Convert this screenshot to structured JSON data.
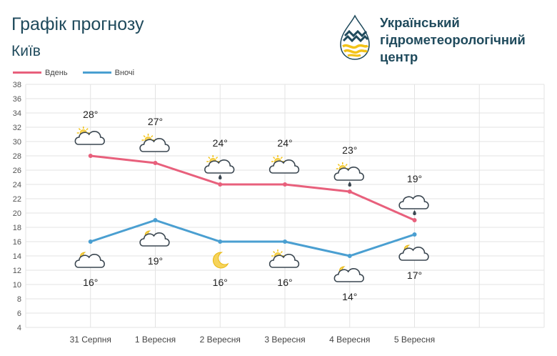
{
  "header": {
    "title": "Графік прогнозу",
    "city": "Київ",
    "org_line1": "Український",
    "org_line2": "гідрометеорологічний",
    "org_line3": "центр"
  },
  "colors": {
    "day": "#e8607c",
    "night": "#4a9fd1",
    "grid": "#e3e3e3",
    "text": "#333333"
  },
  "chart_data": {
    "type": "line",
    "categories": [
      "31 Серпня",
      "1 Вересня",
      "2 Вересня",
      "3 Вересня",
      "4 Вересня",
      "5 Вересня"
    ],
    "series": [
      {
        "name": "Вдень",
        "values": [
          28,
          27,
          24,
          24,
          23,
          19
        ],
        "labels": [
          "28°",
          "27°",
          "24°",
          "24°",
          "23°",
          "19°"
        ],
        "icons": [
          "sun-cloud-icon",
          "sun-cloud-icon",
          "sun-cloud-rain-icon",
          "sun-cloud-icon",
          "sun-cloud-rain-icon",
          "cloud-rain-icon"
        ]
      },
      {
        "name": "Вночі",
        "values": [
          16,
          19,
          16,
          16,
          14,
          17
        ],
        "labels": [
          "16°",
          "19°",
          "16°",
          "16°",
          "14°",
          "17°"
        ],
        "icons": [
          "moon-cloud-icon",
          "moon-cloud-icon",
          "moon-icon",
          "sun-cloud-icon",
          "moon-cloud-icon",
          "moon-cloud-icon"
        ]
      }
    ],
    "yticks": [
      "4",
      "6",
      "8",
      "10",
      "12",
      "14",
      "16",
      "18",
      "20",
      "22",
      "24",
      "26",
      "28",
      "30",
      "32",
      "34",
      "36",
      "38"
    ],
    "ylim": [
      4,
      38
    ],
    "grid": true,
    "legend": "top-left"
  }
}
